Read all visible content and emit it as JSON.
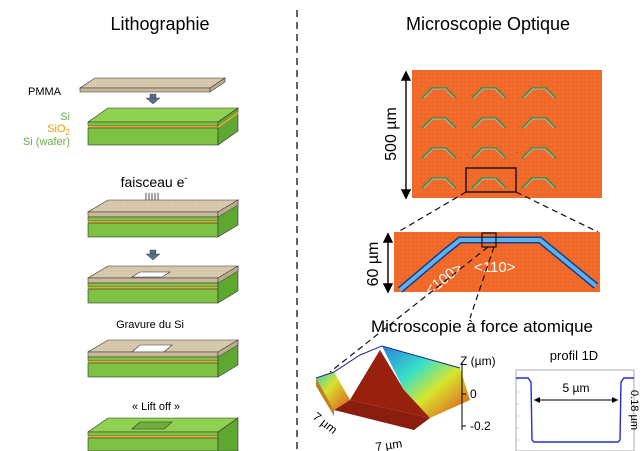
{
  "lithography": {
    "title": "Lithographie",
    "pmma_label": "PMMA",
    "layer_si": "Si",
    "layer_sio2": "SiO",
    "layer_sio2_sub": "2",
    "layer_wafer": "Si (wafer)",
    "beam_label": "faisceau e",
    "beam_superscript": "-",
    "etch_label": "Gravure du Si",
    "liftoff_label": "« Lift off »"
  },
  "optical": {
    "title": "Microscopie Optique",
    "scale_large": "500 µm",
    "scale_small": "60 µm",
    "dir_100": "<100>",
    "dir_110": "<110>"
  },
  "afm": {
    "title": "Microscopie à force atomique",
    "z_axis_label": "Z (µm)",
    "z_tick_0": "0",
    "z_tick_neg": "-0.2",
    "x_dim": "7 µm",
    "y_dim": "7 µm",
    "profile_title": "profil 1D",
    "profile_width": "5 µm",
    "profile_depth": "0.18 µm"
  },
  "colors": {
    "layer_green": "#7dc243",
    "layer_green_dark": "#4f9a2a",
    "sio2_orange": "#e8a23c",
    "pmma_beige": "#d9cbb0",
    "optical_bg": "#f26a2a",
    "waveguide_blue": "#3a8fd6",
    "label_green": "#6ab04c",
    "label_orange": "#e8a000"
  }
}
